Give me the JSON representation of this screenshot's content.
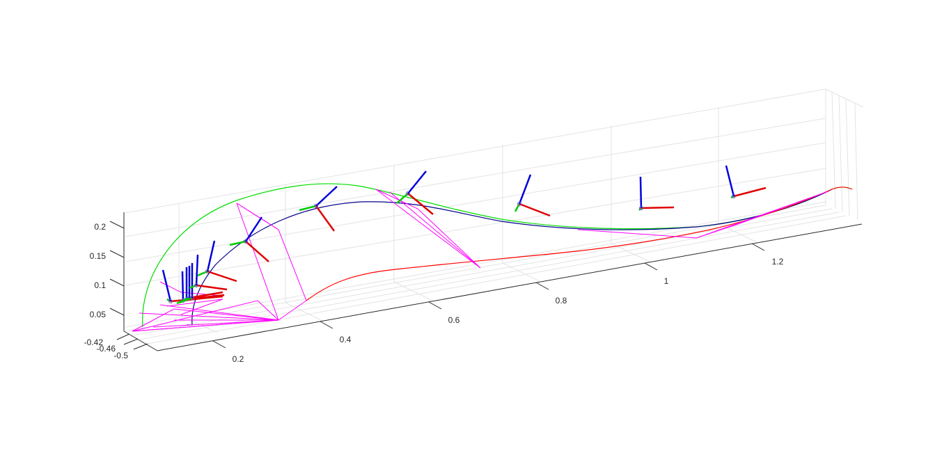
{
  "chart_data": {
    "type": "line",
    "title": "",
    "xlabel": "",
    "ylabel": "",
    "zlabel": "",
    "grid": true,
    "axes": {
      "x_ticks": [
        {
          "value": 0.2,
          "label": "0.2"
        },
        {
          "value": 0.4,
          "label": "0.4"
        },
        {
          "value": 0.6,
          "label": "0.6"
        },
        {
          "value": 0.8,
          "label": "0.8"
        },
        {
          "value": 1.0,
          "label": "1"
        },
        {
          "value": 1.2,
          "label": "1.2"
        }
      ],
      "y_ticks": [
        {
          "value": -0.42,
          "label": "-0.42"
        },
        {
          "value": -0.46,
          "label": "-0.46"
        },
        {
          "value": -0.5,
          "label": "-0.5"
        }
      ],
      "z_ticks": [
        {
          "value": 0.05,
          "label": "0.05"
        },
        {
          "value": 0.1,
          "label": "0.1"
        },
        {
          "value": 0.15,
          "label": "0.15"
        },
        {
          "value": 0.2,
          "label": "0.2"
        }
      ]
    },
    "colors": {
      "green_curve": "#00dd00",
      "blue_curve": "#00008b",
      "red_curve": "#ff0000",
      "magenta_links": "#ff00ff",
      "frame_x": "#e00000",
      "frame_y": "#00cc00",
      "frame_z": "#0000dd",
      "grid": "#e3e3e3",
      "axis": "#262626"
    },
    "series": [
      {
        "color": "green",
        "points": [
          [
            0.08,
            0.05
          ],
          [
            0.12,
            0.14
          ],
          [
            0.22,
            0.21
          ],
          [
            0.35,
            0.25
          ],
          [
            0.5,
            0.24
          ],
          [
            0.7,
            0.18
          ],
          [
            0.9,
            0.15
          ],
          [
            1.1,
            0.16
          ],
          [
            1.25,
            0.19
          ]
        ]
      },
      {
        "color": "blue",
        "points": [
          [
            0.1,
            0.03
          ],
          [
            0.15,
            0.1
          ],
          [
            0.3,
            0.18
          ],
          [
            0.5,
            0.22
          ],
          [
            0.7,
            0.18
          ],
          [
            0.9,
            0.15
          ],
          [
            1.1,
            0.16
          ],
          [
            1.25,
            0.19
          ]
        ]
      },
      {
        "color": "red",
        "points": [
          [
            0.35,
            0.02
          ],
          [
            0.5,
            0.06
          ],
          [
            0.7,
            0.09
          ],
          [
            0.9,
            0.11
          ],
          [
            1.1,
            0.14
          ],
          [
            1.25,
            0.19
          ]
        ]
      }
    ]
  }
}
